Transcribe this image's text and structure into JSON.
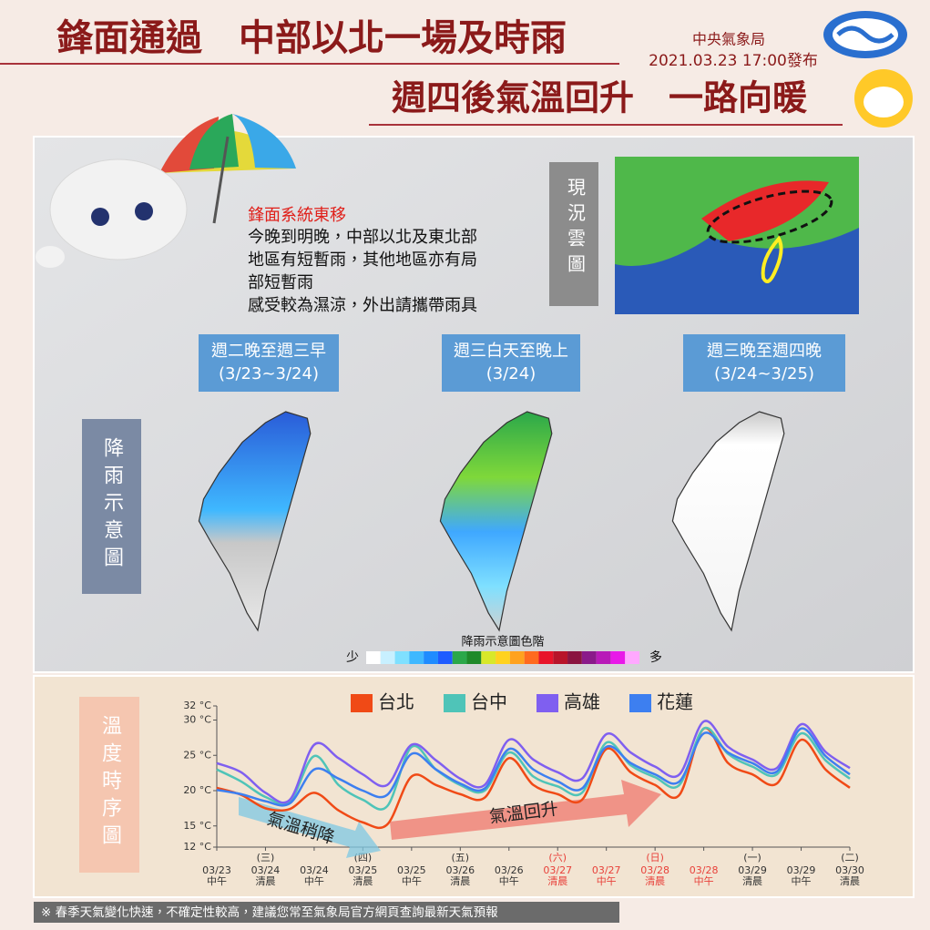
{
  "header": {
    "title_top": "鋒面通過　中部以北一場及時雨",
    "agency": "中央氣象局",
    "issued": "2021.03.23 17:00發布",
    "title_bottom": "週四後氣溫回升　一路向暖"
  },
  "summary": {
    "heading": "鋒面系統東移",
    "lines": [
      "今晚到明晚，中部以北及東北部",
      "地區有短暫雨，其他地區亦有局",
      "部短暫雨",
      "感受較為濕涼，外出請攜帶雨具"
    ]
  },
  "satellite": {
    "label": "現況雲圖"
  },
  "rain": {
    "label": "降雨示意圖",
    "panels": [
      {
        "title": "週二晚至週三早",
        "dates": "(3/23~3/24)"
      },
      {
        "title": "週三白天至晚上",
        "dates": "(3/24)"
      },
      {
        "title": "週三晚至週四晚",
        "dates": "(3/24~3/25)"
      }
    ],
    "scale_title": "降雨示意圖色階",
    "scale_low": "少",
    "scale_high": "多",
    "scale_colors": [
      "#ffffff",
      "#c8f0ff",
      "#7fe0ff",
      "#3fb8ff",
      "#1f8cff",
      "#1f5cff",
      "#2ba84a",
      "#1f8a2a",
      "#d8e82a",
      "#ffd21f",
      "#ffa21f",
      "#ff6a1f",
      "#e8142a",
      "#b8142a",
      "#8a1440",
      "#8a1a8a",
      "#b81ab8",
      "#e81ae8",
      "#ffa8ff"
    ]
  },
  "footer": {
    "note": "※ 春季天氣變化快速，不確定性較高，建議您常至氣象局官方網頁查詢最新天氣預報"
  },
  "chart_data": {
    "type": "line",
    "title": "溫度時序圖",
    "x": [
      0,
      0.5,
      1,
      1.5,
      2,
      2.5,
      3,
      3.5,
      4,
      4.5,
      5,
      5.5,
      6,
      6.5,
      7,
      7.5,
      8,
      8.5,
      9,
      9.5,
      10,
      10.5,
      11,
      11.5,
      12,
      12.5,
      13
    ],
    "xlim": [
      0,
      13
    ],
    "xticks": [
      {
        "value": 0,
        "label": "03/23"
      },
      {
        "value": 1,
        "label": "03/24"
      },
      {
        "value": 2,
        "label": "03/24"
      },
      {
        "value": 3,
        "label": "03/25"
      },
      {
        "value": 4,
        "label": "03/25"
      },
      {
        "value": 5,
        "label": "03/26"
      },
      {
        "value": 6,
        "label": "03/26"
      },
      {
        "value": 7,
        "label": "03/27"
      },
      {
        "value": 8,
        "label": "03/27"
      },
      {
        "value": 9,
        "label": "03/28"
      },
      {
        "value": 10,
        "label": "03/28"
      },
      {
        "value": 11,
        "label": "03/29"
      },
      {
        "value": 12,
        "label": "03/29"
      },
      {
        "value": 13,
        "label": "03/30"
      }
    ],
    "x_periods": [
      "中午",
      "清晨",
      "中午",
      "清晨",
      "中午",
      "清晨",
      "中午",
      "清晨",
      "中午",
      "清晨",
      "中午",
      "清晨",
      "中午",
      "清晨"
    ],
    "weekdays": [
      {
        "value": 1,
        "label": "(三)"
      },
      {
        "value": 3,
        "label": "(四)"
      },
      {
        "value": 5,
        "label": "(五)"
      },
      {
        "value": 7,
        "label": "(六)"
      },
      {
        "value": 9,
        "label": "(日)"
      },
      {
        "value": 11,
        "label": "(一)"
      },
      {
        "value": 13,
        "label": "(二)"
      }
    ],
    "highlight": {
      "range": [
        7,
        10
      ],
      "color": "#e8413a"
    },
    "ylim": [
      12,
      32
    ],
    "yticks": [
      {
        "value": 12,
        "label": "12 °C"
      },
      {
        "value": 15,
        "label": "15 °C"
      },
      {
        "value": 20,
        "label": "20 °C"
      },
      {
        "value": 25,
        "label": "25 °C"
      },
      {
        "value": 30,
        "label": "30 °C"
      },
      {
        "value": 32,
        "label": "32 °C"
      }
    ],
    "series": [
      {
        "name": "台北",
        "color": "#f04a16",
        "values": [
          20.4,
          19.4,
          17.5,
          17.4,
          19.7,
          17.2,
          15.5,
          15.2,
          22,
          20.8,
          19.5,
          19,
          24.6,
          20.8,
          19.5,
          18.7,
          25.9,
          22.6,
          20.8,
          19.4,
          28.8,
          23.9,
          22.3,
          21,
          27.2,
          23,
          20.4
        ]
      },
      {
        "name": "台中",
        "color": "#4fc4b8",
        "values": [
          23,
          21.3,
          19.1,
          18.5,
          24.9,
          20.8,
          18.7,
          17.8,
          26.2,
          23,
          20.8,
          20,
          25.4,
          22,
          20.6,
          19.7,
          26.8,
          23.6,
          21.9,
          20.8,
          28.8,
          25.2,
          23.4,
          22.3,
          28.1,
          24.3,
          21.7
        ]
      },
      {
        "name": "高雄",
        "color": "#7f5ff0",
        "values": [
          23.9,
          22.6,
          19.7,
          18.7,
          26.5,
          24.6,
          22.3,
          20.8,
          26.5,
          24.3,
          21.7,
          20.8,
          27.2,
          24.4,
          22.6,
          21.7,
          28,
          25.4,
          23.4,
          22.3,
          29.8,
          26.2,
          24.4,
          23.2,
          29.4,
          25.5,
          23.2
        ]
      },
      {
        "name": "花蓮",
        "color": "#3d7ff0",
        "values": [
          20.1,
          19.5,
          18.5,
          18.2,
          23,
          21.7,
          20,
          19.4,
          25.2,
          23,
          21,
          20.3,
          25.9,
          23,
          21.3,
          20.3,
          26.2,
          23.9,
          22.3,
          21.3,
          28.1,
          25.4,
          23.9,
          22.7,
          28.8,
          24.9,
          22.3
        ]
      }
    ],
    "annotations": [
      "氣溫稍降",
      "氣溫回升"
    ],
    "grid": false
  }
}
